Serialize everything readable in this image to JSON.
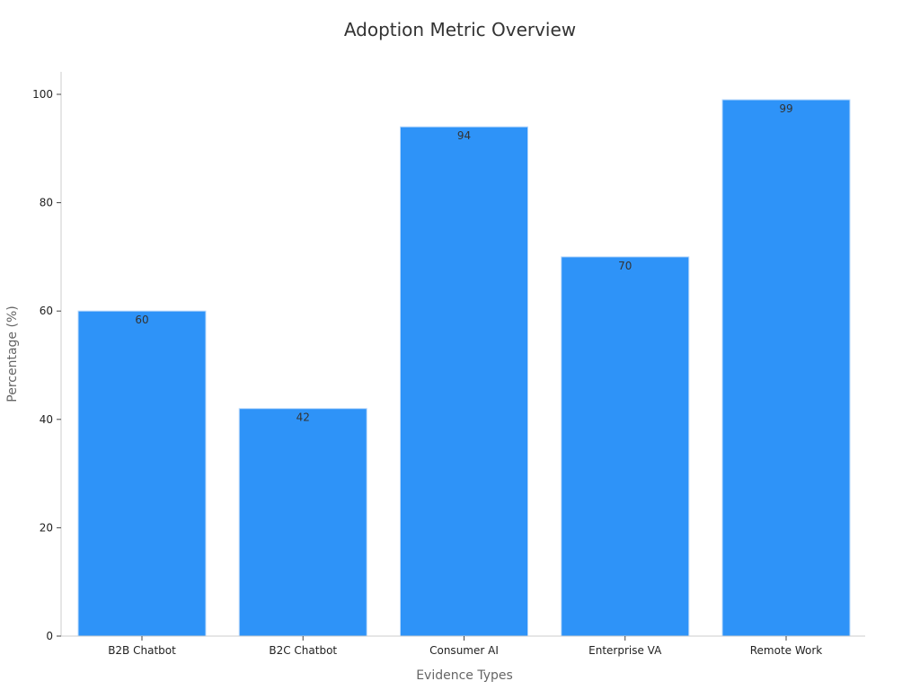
{
  "chart_data": {
    "type": "bar",
    "title": "Adoption Metric Overview",
    "xlabel": "Evidence Types",
    "ylabel": "Percentage (%)",
    "categories": [
      "B2B Chatbot",
      "B2C Chatbot",
      "Consumer AI",
      "Enterprise VA",
      "Remote Work"
    ],
    "values": [
      60,
      42,
      94,
      70,
      99
    ],
    "data_labels": [
      "60",
      "42",
      "94",
      "70",
      "99"
    ],
    "ylim": [
      0,
      104
    ],
    "yticks": [
      0,
      20,
      40,
      60,
      80,
      100
    ],
    "ytick_labels": [
      "0",
      "20",
      "40",
      "60",
      "80",
      "100"
    ],
    "bar_color": "#2e93f8",
    "bar_edge_color": "#b8d8fb",
    "grid": false,
    "legend": "none"
  }
}
